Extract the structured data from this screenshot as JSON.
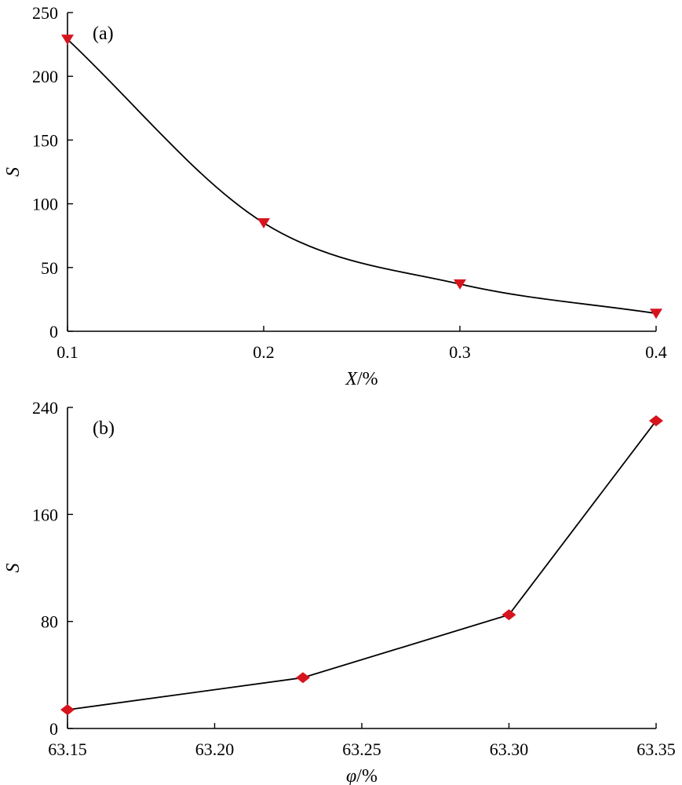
{
  "chart_data": [
    {
      "type": "line",
      "panel_label": "(a)",
      "xlabel": {
        "var": "X",
        "unit": "/%"
      },
      "ylabel": "S",
      "xlim": [
        0.1,
        0.4
      ],
      "ylim": [
        0,
        250
      ],
      "xticks": [
        "0.1",
        "0.2",
        "0.3",
        "0.4"
      ],
      "yticks": [
        "0",
        "50",
        "100",
        "150",
        "200",
        "250"
      ],
      "smooth": true,
      "marker": "triangle-down",
      "marker_color": "#d7141e",
      "x": [
        0.1,
        0.2,
        0.3,
        0.4
      ],
      "y": [
        229,
        85,
        37,
        14
      ]
    },
    {
      "type": "line",
      "panel_label": "(b)",
      "xlabel": {
        "var": "φ",
        "unit": "/%"
      },
      "ylabel": "S",
      "xlim": [
        63.15,
        63.35
      ],
      "ylim": [
        0,
        240
      ],
      "xticks": [
        "63.15",
        "63.20",
        "63.25",
        "63.30",
        "63.35"
      ],
      "yticks": [
        "0",
        "80",
        "160",
        "240"
      ],
      "smooth": false,
      "marker": "diamond",
      "marker_color": "#d7141e",
      "x": [
        63.15,
        63.23,
        63.3,
        63.35
      ],
      "y": [
        14,
        38,
        85,
        230
      ]
    }
  ]
}
